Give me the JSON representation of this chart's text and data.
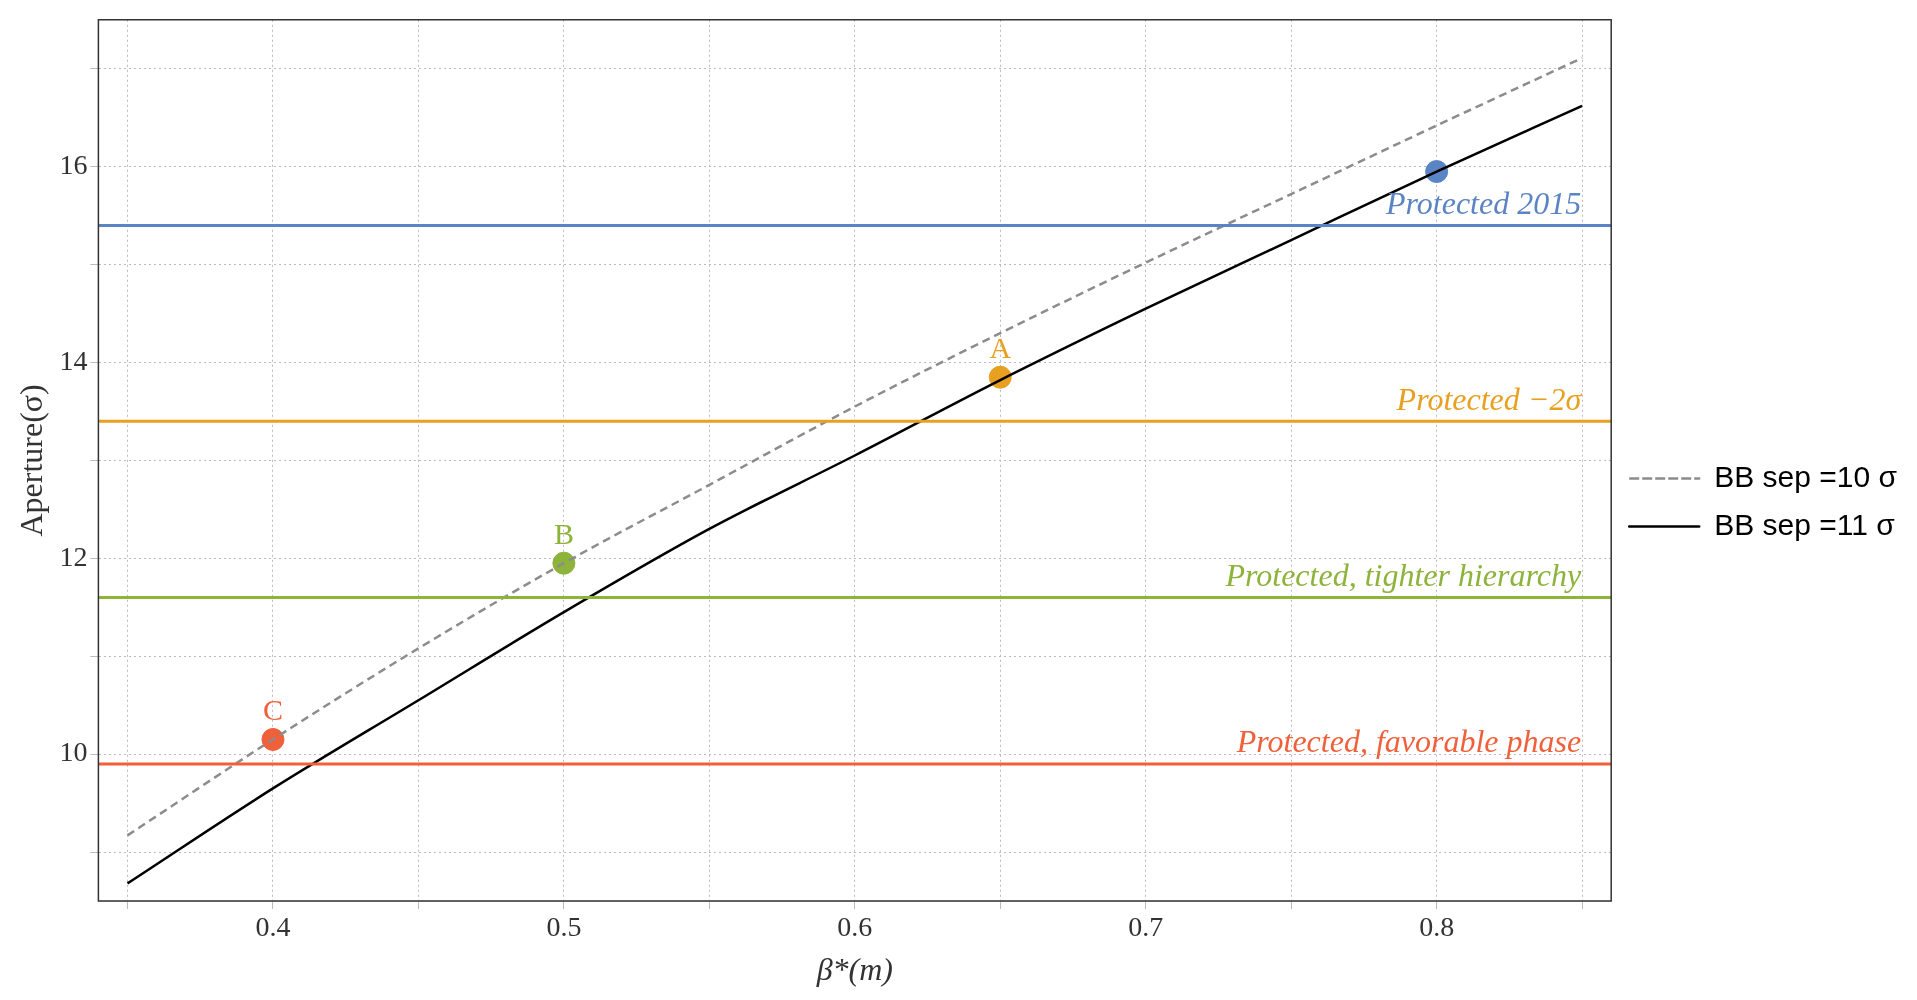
{
  "chart_data": {
    "type": "line",
    "xlabel": "β*(m)",
    "ylabel": "Aperture(σ)",
    "xlim": [
      0.34,
      0.86
    ],
    "ylim": [
      8.5,
      17.5
    ],
    "xticks": [
      {
        "value": 0.35,
        "label": null
      },
      0.4,
      {
        "value": 0.45,
        "label": null
      },
      0.5,
      {
        "value": 0.55,
        "label": null
      },
      0.6,
      {
        "value": 0.65,
        "label": null
      },
      0.7,
      {
        "value": 0.75,
        "label": null
      },
      0.8,
      {
        "value": 0.85,
        "label": null
      }
    ],
    "yticks": [
      {
        "value": 9,
        "label": null
      },
      10,
      {
        "value": 11,
        "label": null
      },
      12,
      {
        "value": 13,
        "label": null
      },
      14,
      {
        "value": 15,
        "label": null
      },
      16,
      {
        "value": 17,
        "label": null
      }
    ],
    "grid": true,
    "legend": "right",
    "series": [
      {
        "name": "BB sep =10 σ",
        "color": "#8c8c8c",
        "line_style": "dashed",
        "marker": "none",
        "x": [
          0.35,
          0.4,
          0.45,
          0.5,
          0.55,
          0.6,
          0.65,
          0.7,
          0.75,
          0.8,
          0.85
        ],
        "values": [
          9.17,
          10.15,
          11.08,
          11.95,
          12.75,
          13.55,
          14.3,
          15.02,
          15.72,
          16.42,
          17.11
        ]
      },
      {
        "name": "BB sep =11 σ",
        "color": "#000000",
        "line_style": "solid",
        "marker": "none",
        "x": [
          0.35,
          0.4,
          0.45,
          0.5,
          0.55,
          0.6,
          0.65,
          0.7,
          0.75,
          0.8,
          0.85
        ],
        "values": [
          8.68,
          9.65,
          10.55,
          11.45,
          12.3,
          13.05,
          13.82,
          14.55,
          15.25,
          15.95,
          16.62
        ]
      },
      {
        "type": "scatter",
        "marker": "circle",
        "x": [
          0.8,
          0.65,
          0.5,
          0.4
        ],
        "values": [
          15.95,
          13.85,
          11.95,
          10.15
        ],
        "colors": [
          "#5b84c4",
          "#e8a020",
          "#8db33a",
          "#f0603a"
        ]
      }
    ],
    "ref_lines": [
      {
        "axis": "y",
        "value": 15.4,
        "label": "Protected 2015",
        "color": "#5b84c4"
      },
      {
        "axis": "y",
        "value": 13.4,
        "label": "Protected −2σ",
        "color": "#e8a020"
      },
      {
        "axis": "y",
        "value": 11.6,
        "label": "Protected, tighter hierarchy",
        "color": "#8db33a"
      },
      {
        "axis": "y",
        "value": 9.9,
        "label": "Protected, favorable phase",
        "color": "#f0603a"
      }
    ],
    "annotations": [
      {
        "text": "A",
        "x": 0.65,
        "y": 13.85
      },
      {
        "text": "B",
        "x": 0.5,
        "y": 11.95
      },
      {
        "text": "C",
        "x": 0.4,
        "y": 10.15
      }
    ]
  }
}
